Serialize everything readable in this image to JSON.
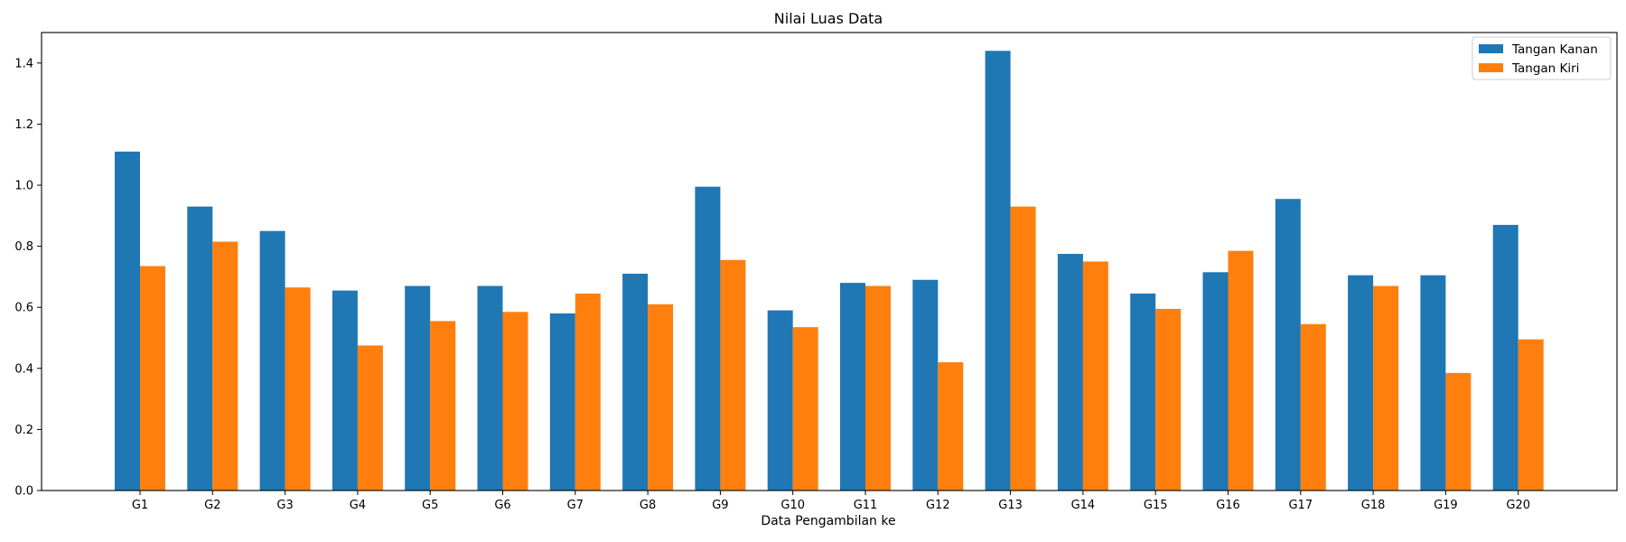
{
  "chart_data": {
    "type": "bar",
    "title": "Nilai Luas Data",
    "xlabel": "Data Pengambilan ke",
    "ylabel": "",
    "ylim": [
      0,
      1.5
    ],
    "yticks": [
      "0.0",
      "0.2",
      "0.4",
      "0.6",
      "0.8",
      "1.0",
      "1.2",
      "1.4"
    ],
    "categories": [
      "G1",
      "G2",
      "G3",
      "G4",
      "G5",
      "G6",
      "G7",
      "G8",
      "G9",
      "G10",
      "G11",
      "G12",
      "G13",
      "G14",
      "G15",
      "G16",
      "G17",
      "G18",
      "G19",
      "G20"
    ],
    "series": [
      {
        "name": "Tangan Kanan",
        "color": "#1f77b4",
        "values": [
          1.11,
          0.93,
          0.85,
          0.655,
          0.67,
          0.67,
          0.58,
          0.71,
          0.995,
          0.59,
          0.68,
          0.69,
          1.44,
          0.775,
          0.645,
          0.715,
          0.955,
          0.705,
          0.705,
          0.87
        ]
      },
      {
        "name": "Tangan Kiri",
        "color": "#ff7f0e",
        "values": [
          0.735,
          0.815,
          0.665,
          0.475,
          0.555,
          0.585,
          0.645,
          0.61,
          0.755,
          0.535,
          0.67,
          0.42,
          0.93,
          0.75,
          0.595,
          0.785,
          0.545,
          0.67,
          0.385,
          0.495
        ]
      }
    ],
    "legend_position": "top-right",
    "grid": false
  }
}
